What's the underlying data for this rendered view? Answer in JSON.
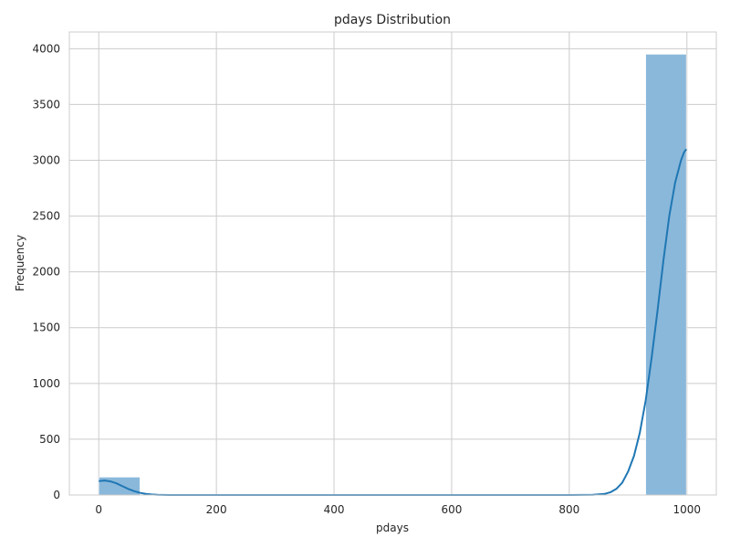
{
  "chart_data": {
    "type": "bar",
    "title": "pdays Distribution",
    "xlabel": "pdays",
    "ylabel": "Frequency",
    "xlim": [
      -50,
      1050
    ],
    "ylim": [
      0,
      4150
    ],
    "xticks": [
      0,
      200,
      400,
      600,
      800,
      1000
    ],
    "yticks": [
      0,
      500,
      1000,
      1500,
      2000,
      2500,
      3000,
      3500,
      4000
    ],
    "grid": true,
    "bins": [
      {
        "x0": 0,
        "x1": 70,
        "count": 160
      },
      {
        "x0": 930,
        "x1": 999,
        "count": 3950
      }
    ],
    "kde": {
      "x": [
        0,
        10,
        20,
        30,
        40,
        50,
        60,
        70,
        80,
        90,
        100,
        120,
        150,
        200,
        300,
        400,
        500,
        600,
        700,
        800,
        840,
        860,
        870,
        880,
        890,
        900,
        910,
        920,
        930,
        940,
        950,
        960,
        970,
        980,
        990,
        995,
        999
      ],
      "y": [
        125,
        130,
        122,
        105,
        80,
        55,
        35,
        20,
        10,
        5,
        2,
        0,
        0,
        0,
        0,
        0,
        0,
        0,
        0,
        0,
        2,
        10,
        25,
        55,
        110,
        210,
        350,
        560,
        850,
        1230,
        1650,
        2100,
        2500,
        2800,
        3000,
        3070,
        3100
      ]
    },
    "colors": {
      "bar": "#8ab8da",
      "kde": "#1f77b4"
    }
  }
}
